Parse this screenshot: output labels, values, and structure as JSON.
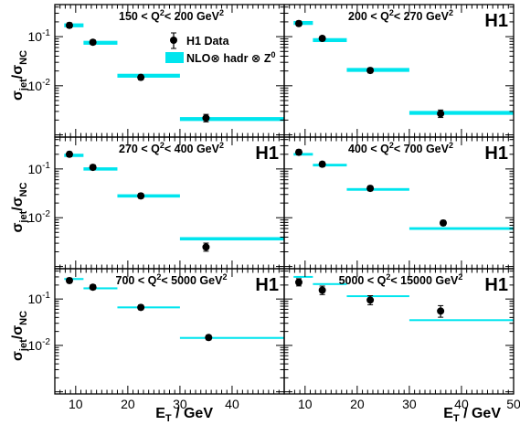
{
  "chart_data": {
    "type": "scatter",
    "layout": "3x2 grid, shared axes",
    "xlabel_main": "E",
    "xlabel_sub": "T",
    "xlabel_unit": " / GeV",
    "ylabel_main": "σ",
    "ylabel_sub1": "jet",
    "ylabel_mid": "/σ",
    "ylabel_sub2": "NC",
    "xlim": [
      6,
      50
    ],
    "ylim": [
      0.0009,
      0.45
    ],
    "y_scale": "log",
    "x_ticks": [
      10,
      20,
      30,
      40,
      50
    ],
    "x_tick_labels_left": [
      "10",
      "20",
      "30",
      "40"
    ],
    "x_tick_labels_right": [
      "10",
      "20",
      "30",
      "40",
      "50"
    ],
    "y_ticks": [
      {
        "value": 0.1,
        "base": "10",
        "exp": "-1"
      },
      {
        "value": 0.01,
        "base": "10",
        "exp": "-2"
      }
    ],
    "legend": {
      "data_label": "H1 Data",
      "theory_label_pre": "NLO",
      "theory_label_mid": " hadr ",
      "theory_label_post": " Z",
      "theory_label_sup": "0",
      "otimes": "⊗",
      "placement": "top-left panel, upper center"
    },
    "h1_logo": "H1",
    "colors": {
      "theory": "#00e5ee",
      "data": "#000000",
      "frame": "#000000"
    },
    "panels": [
      {
        "label_pre": "150 < Q",
        "label_sup": "2",
        "label_post": "< 200 GeV",
        "label_sup2": "2",
        "show_h1": false,
        "show_legend": true,
        "theory": [
          {
            "x": [
              7.8,
              11.5
            ],
            "y": 0.17,
            "hw": 0.012
          },
          {
            "x": [
              11.5,
              18
            ],
            "y": 0.075,
            "hw": 0.012
          },
          {
            "x": [
              18,
              30
            ],
            "y": 0.016,
            "hw": 0.012
          },
          {
            "x": [
              30,
              50
            ],
            "y": 0.0021,
            "hw": 0.012
          }
        ],
        "data": [
          {
            "x": 8.8,
            "y": 0.17,
            "el": 0.011,
            "eh": 0.011
          },
          {
            "x": 13.3,
            "y": 0.077,
            "el": 0.008,
            "eh": 0.008
          },
          {
            "x": 22.5,
            "y": 0.0148,
            "el": 0.01,
            "eh": 0.01
          },
          {
            "x": 35,
            "y": 0.0022,
            "el": 0.03,
            "eh": 0.03
          }
        ]
      },
      {
        "label_pre": "200 < Q",
        "label_sup": "2",
        "label_post": "< 270 GeV",
        "label_sup2": "2",
        "show_h1": true,
        "show_legend": false,
        "theory": [
          {
            "x": [
              7.8,
              11.5
            ],
            "y": 0.19,
            "hw": 0.012
          },
          {
            "x": [
              11.5,
              18
            ],
            "y": 0.085,
            "hw": 0.012
          },
          {
            "x": [
              18,
              30
            ],
            "y": 0.021,
            "hw": 0.012
          },
          {
            "x": [
              30,
              50
            ],
            "y": 0.0028,
            "hw": 0.012
          }
        ],
        "data": [
          {
            "x": 8.8,
            "y": 0.185,
            "el": 0.011,
            "eh": 0.011
          },
          {
            "x": 13.3,
            "y": 0.092,
            "el": 0.008,
            "eh": 0.008
          },
          {
            "x": 22.5,
            "y": 0.0205,
            "el": 0.01,
            "eh": 0.01
          },
          {
            "x": 36,
            "y": 0.0027,
            "el": 0.03,
            "eh": 0.03
          }
        ]
      },
      {
        "label_pre": "270 < Q",
        "label_sup": "2",
        "label_post": "< 400 GeV",
        "label_sup2": "2",
        "show_h1": true,
        "show_legend": false,
        "theory": [
          {
            "x": [
              7.8,
              11.5
            ],
            "y": 0.19,
            "hw": 0.01
          },
          {
            "x": [
              11.5,
              18
            ],
            "y": 0.1,
            "hw": 0.01
          },
          {
            "x": [
              18,
              30
            ],
            "y": 0.028,
            "hw": 0.01
          },
          {
            "x": [
              30,
              50
            ],
            "y": 0.0037,
            "hw": 0.01
          }
        ],
        "data": [
          {
            "x": 8.8,
            "y": 0.2,
            "el": 0.01,
            "eh": 0.01
          },
          {
            "x": 13.3,
            "y": 0.108,
            "el": 0.01,
            "eh": 0.01
          },
          {
            "x": 22.5,
            "y": 0.028,
            "el": 0.01,
            "eh": 0.01
          },
          {
            "x": 35,
            "y": 0.0025,
            "el": 0.035,
            "eh": 0.035
          }
        ]
      },
      {
        "label_pre": "400 < Q",
        "label_sup": "2",
        "label_post": "< 700 GeV",
        "label_sup2": "2",
        "show_h1": true,
        "show_legend": false,
        "theory": [
          {
            "x": [
              7.8,
              11.5
            ],
            "y": 0.2,
            "hw": 0.008
          },
          {
            "x": [
              11.5,
              18
            ],
            "y": 0.12,
            "hw": 0.008
          },
          {
            "x": [
              18,
              30
            ],
            "y": 0.038,
            "hw": 0.008
          },
          {
            "x": [
              30,
              50
            ],
            "y": 0.006,
            "hw": 0.008
          }
        ],
        "data": [
          {
            "x": 8.8,
            "y": 0.22,
            "el": 0.01,
            "eh": 0.01
          },
          {
            "x": 13.3,
            "y": 0.125,
            "el": 0.01,
            "eh": 0.01
          },
          {
            "x": 22.5,
            "y": 0.04,
            "el": 0.01,
            "eh": 0.01
          },
          {
            "x": 36.5,
            "y": 0.0078,
            "el": 0.01,
            "eh": 0.01
          }
        ]
      },
      {
        "label_pre": "700 < Q",
        "label_sup": "2",
        "label_post": "< 5000 GeV",
        "label_sup2": "2",
        "show_h1": true,
        "show_legend": false,
        "theory": [
          {
            "x": [
              7.8,
              11.5
            ],
            "y": 0.27,
            "hw": 0.006
          },
          {
            "x": [
              11.5,
              18
            ],
            "y": 0.17,
            "hw": 0.006
          },
          {
            "x": [
              18,
              30
            ],
            "y": 0.066,
            "hw": 0.006
          },
          {
            "x": [
              30,
              50
            ],
            "y": 0.0145,
            "hw": 0.006
          }
        ],
        "data": [
          {
            "x": 8.8,
            "y": 0.25,
            "el": 0.01,
            "eh": 0.01
          },
          {
            "x": 13.3,
            "y": 0.18,
            "el": 0.01,
            "eh": 0.01
          },
          {
            "x": 22.5,
            "y": 0.066,
            "el": 0.01,
            "eh": 0.01
          },
          {
            "x": 35.5,
            "y": 0.0148,
            "el": 0.01,
            "eh": 0.01
          }
        ]
      },
      {
        "label_pre": "5000 < Q",
        "label_sup": "2",
        "label_post": "< 15000 GeV",
        "label_sup2": "2",
        "show_h1": true,
        "show_legend": false,
        "theory": [
          {
            "x": [
              7.8,
              11.5
            ],
            "y": 0.3,
            "hw": 0.005
          },
          {
            "x": [
              11.5,
              18
            ],
            "y": 0.21,
            "hw": 0.005
          },
          {
            "x": [
              18,
              30
            ],
            "y": 0.115,
            "hw": 0.005
          },
          {
            "x": [
              30,
              50
            ],
            "y": 0.035,
            "hw": 0.005
          }
        ],
        "data": [
          {
            "x": 8.8,
            "y": 0.23,
            "el": 0.03,
            "eh": 0.03
          },
          {
            "x": 13.3,
            "y": 0.155,
            "el": 0.04,
            "eh": 0.04
          },
          {
            "x": 22.5,
            "y": 0.095,
            "el": 0.045,
            "eh": 0.045
          },
          {
            "x": 36,
            "y": 0.055,
            "el": 0.065,
            "eh": 0.065
          }
        ]
      }
    ]
  }
}
